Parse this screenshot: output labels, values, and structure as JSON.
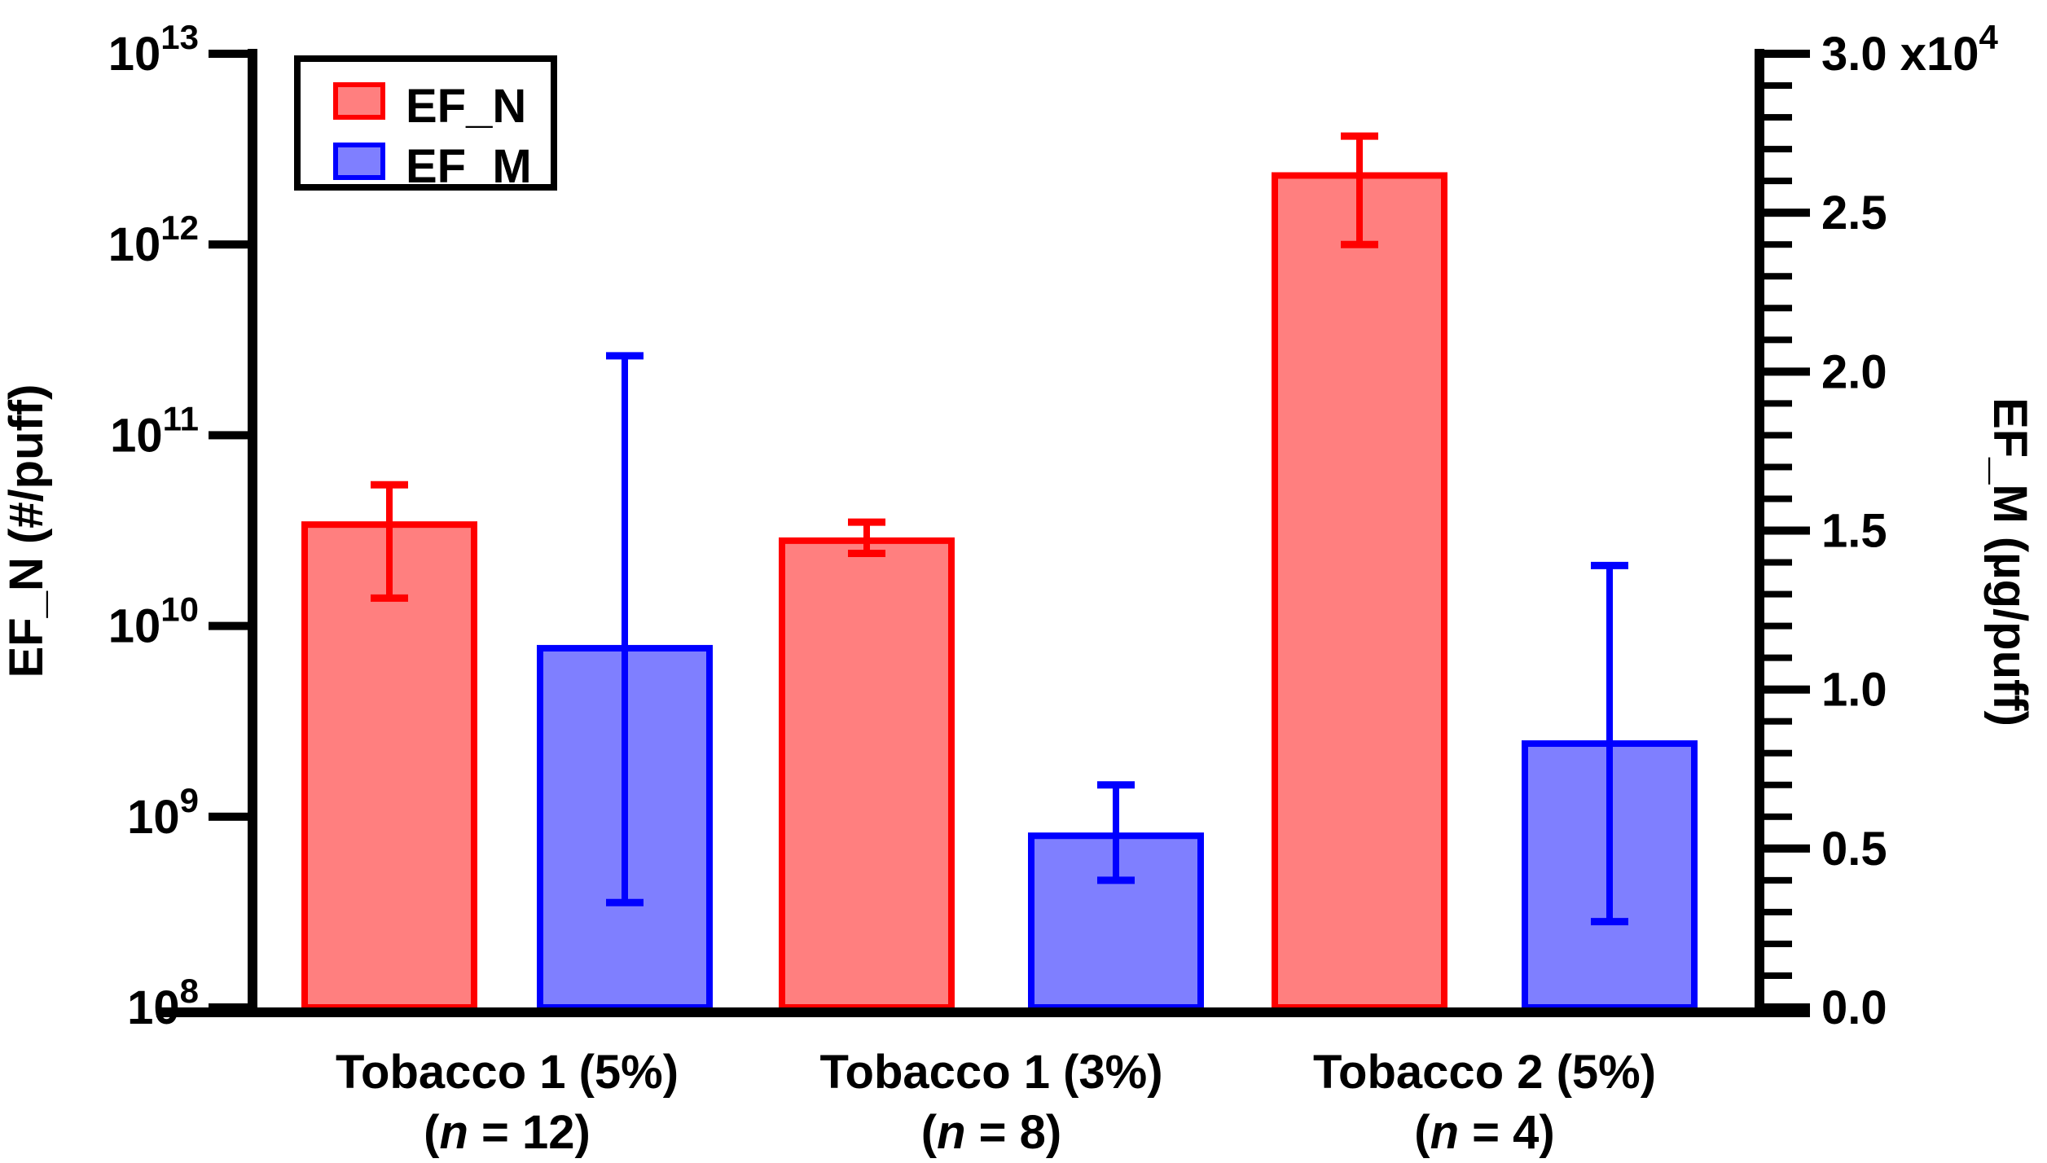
{
  "chart_data": {
    "type": "bar",
    "title": "",
    "categories": [
      "Tobacco 1 (5%)",
      "Tobacco 1 (3%)",
      "Tobacco 2 (5%)"
    ],
    "category_n_labels": [
      "(n = 12)",
      "(n = 8)",
      "(n = 4)"
    ],
    "series": [
      {
        "name": "EF_N",
        "axis": "left",
        "color_fill": "#FF7F7F",
        "color_stroke": "#FF0000",
        "values": [
          34000000000.0,
          28000000000.0,
          2300000000000.0
        ],
        "error_low": [
          14000000000.0,
          24000000000.0,
          1000000000000.0
        ],
        "error_high": [
          55000000000.0,
          35000000000.0,
          3700000000000.0
        ]
      },
      {
        "name": "EF_M",
        "axis": "right",
        "color_fill": "#7F7FFF",
        "color_stroke": "#0000FF",
        "values": [
          11300,
          5400,
          8300
        ],
        "error_low": [
          3300,
          4000,
          2700
        ],
        "error_high": [
          20500,
          7000,
          13900
        ]
      }
    ],
    "left_axis": {
      "label": "EF_N (#/puff)",
      "scale": "log",
      "min": 100000000.0,
      "max": 10000000000000.0,
      "tick_base": "10",
      "tick_exponents": [
        "13",
        "12",
        "11",
        "10",
        "9",
        "8"
      ]
    },
    "right_axis": {
      "label": "EF_M (µg/puff)",
      "scale": "linear",
      "min": 0,
      "max": 30000,
      "major_step": 5000,
      "minor_step": 1000,
      "major_tick_labels": [
        "3.0 x10",
        "2.5",
        "2.0",
        "1.5",
        "1.0",
        "0.5",
        "0.0"
      ],
      "top_label_exponent": "4"
    },
    "legend": {
      "position": "top-left",
      "entries": [
        "EF_N",
        "EF_M"
      ]
    },
    "grid": false,
    "background": "#ffffff",
    "axis_color": "#000000"
  }
}
